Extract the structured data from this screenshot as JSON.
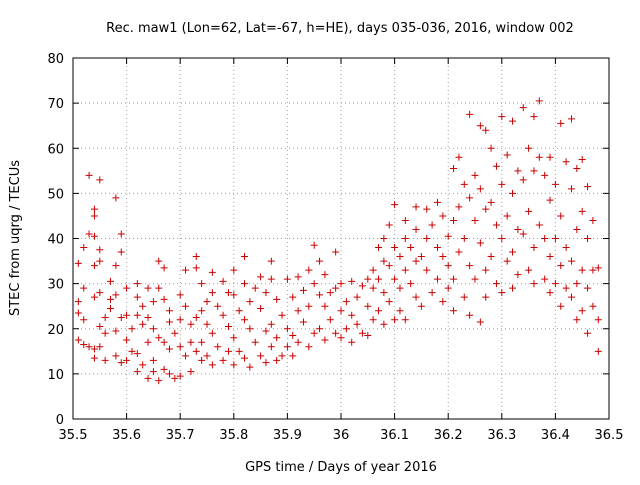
{
  "chart_data": {
    "type": "scatter",
    "title": "Rec. maw1 (Lon=62, Lat=-67, h=HE), days 035-036, 2016, window 002",
    "xlabel": "GPS time / Days of year 2016",
    "ylabel": "STEC from uqrg / TECUs",
    "xlim": [
      35.5,
      36.5
    ],
    "ylim": [
      0,
      80
    ],
    "xticks": [
      "35.5",
      "35.6",
      "35.7",
      "35.8",
      "35.9",
      "36",
      "36.1",
      "36.2",
      "36.3",
      "36.4",
      "36.5"
    ],
    "yticks": [
      "0",
      "10",
      "20",
      "30",
      "40",
      "50",
      "60",
      "70",
      "80"
    ],
    "grid": "dotted",
    "marker": "plus",
    "color": "#cc0000",
    "series": [
      {
        "points": [
          [
            35.51,
            34.5
          ],
          [
            35.51,
            26
          ],
          [
            35.51,
            23.5
          ],
          [
            35.51,
            17.5
          ],
          [
            35.52,
            38
          ],
          [
            35.52,
            29
          ],
          [
            35.52,
            22
          ],
          [
            35.52,
            16.5
          ],
          [
            35.53,
            54
          ],
          [
            35.53,
            41
          ],
          [
            35.53,
            16
          ],
          [
            35.54,
            46.5
          ],
          [
            35.54,
            45
          ],
          [
            35.54,
            40.5
          ],
          [
            35.54,
            34
          ],
          [
            35.54,
            27
          ],
          [
            35.54,
            15.5
          ],
          [
            35.54,
            13.5
          ],
          [
            35.55,
            53
          ],
          [
            35.55,
            37.5
          ],
          [
            35.55,
            35
          ],
          [
            35.55,
            28
          ],
          [
            35.55,
            20.5
          ],
          [
            35.55,
            16
          ],
          [
            35.56,
            22.5
          ],
          [
            35.56,
            19
          ],
          [
            35.56,
            13
          ],
          [
            35.57,
            30.5
          ],
          [
            35.57,
            26.5
          ],
          [
            35.57,
            24.5
          ],
          [
            35.58,
            49
          ],
          [
            35.58,
            34
          ],
          [
            35.58,
            27.5
          ],
          [
            35.58,
            19.5
          ],
          [
            35.58,
            14
          ],
          [
            35.59,
            41
          ],
          [
            35.59,
            37
          ],
          [
            35.59,
            22.5
          ],
          [
            35.59,
            12.5
          ],
          [
            35.6,
            29
          ],
          [
            35.6,
            23
          ],
          [
            35.6,
            17.5
          ],
          [
            35.6,
            13
          ],
          [
            35.61,
            20
          ],
          [
            35.61,
            15
          ],
          [
            35.62,
            30
          ],
          [
            35.62,
            27
          ],
          [
            35.62,
            23
          ],
          [
            35.62,
            14.5
          ],
          [
            35.62,
            10.5
          ],
          [
            35.63,
            25
          ],
          [
            35.63,
            21
          ],
          [
            35.63,
            12
          ],
          [
            35.64,
            29
          ],
          [
            35.64,
            22.5
          ],
          [
            35.64,
            17
          ],
          [
            35.64,
            9
          ],
          [
            35.65,
            26
          ],
          [
            35.65,
            20
          ],
          [
            35.65,
            13
          ],
          [
            35.65,
            10.5
          ],
          [
            35.66,
            35
          ],
          [
            35.66,
            29
          ],
          [
            35.66,
            18
          ],
          [
            35.66,
            8.5
          ],
          [
            35.67,
            33.5
          ],
          [
            35.67,
            26.5
          ],
          [
            35.67,
            17
          ],
          [
            35.67,
            11
          ],
          [
            35.68,
            24
          ],
          [
            35.68,
            21.5
          ],
          [
            35.68,
            15.5
          ],
          [
            35.68,
            10
          ],
          [
            35.69,
            19
          ],
          [
            35.69,
            9
          ],
          [
            35.7,
            27.5
          ],
          [
            35.7,
            22
          ],
          [
            35.7,
            16
          ],
          [
            35.7,
            9.5
          ],
          [
            35.71,
            33
          ],
          [
            35.71,
            25
          ],
          [
            35.71,
            14
          ],
          [
            35.72,
            21
          ],
          [
            35.72,
            17
          ],
          [
            35.72,
            10.5
          ],
          [
            35.73,
            36
          ],
          [
            35.73,
            33.5
          ],
          [
            35.73,
            22.5
          ],
          [
            35.73,
            15
          ],
          [
            35.74,
            30
          ],
          [
            35.74,
            24
          ],
          [
            35.74,
            17
          ],
          [
            35.74,
            13
          ],
          [
            35.75,
            26
          ],
          [
            35.75,
            21
          ],
          [
            35.75,
            14
          ],
          [
            35.76,
            32.5
          ],
          [
            35.76,
            28
          ],
          [
            35.76,
            19
          ],
          [
            35.76,
            12
          ],
          [
            35.77,
            25
          ],
          [
            35.77,
            16
          ],
          [
            35.78,
            30.5
          ],
          [
            35.78,
            23
          ],
          [
            35.78,
            13
          ],
          [
            35.79,
            28
          ],
          [
            35.79,
            20.5
          ],
          [
            35.79,
            15
          ],
          [
            35.8,
            33
          ],
          [
            35.8,
            27.5
          ],
          [
            35.8,
            18
          ],
          [
            35.8,
            12
          ],
          [
            35.81,
            24
          ],
          [
            35.81,
            15
          ],
          [
            35.82,
            36
          ],
          [
            35.82,
            30
          ],
          [
            35.82,
            22
          ],
          [
            35.82,
            13.5
          ],
          [
            35.83,
            26
          ],
          [
            35.83,
            20
          ],
          [
            35.83,
            11.5
          ],
          [
            35.84,
            29
          ],
          [
            35.84,
            17
          ],
          [
            35.85,
            31.5
          ],
          [
            35.85,
            24.5
          ],
          [
            35.85,
            14
          ],
          [
            35.86,
            28
          ],
          [
            35.86,
            19.5
          ],
          [
            35.86,
            12.5
          ],
          [
            35.87,
            35
          ],
          [
            35.87,
            31
          ],
          [
            35.87,
            21
          ],
          [
            35.87,
            16
          ],
          [
            35.88,
            26.5
          ],
          [
            35.88,
            18
          ],
          [
            35.88,
            13
          ],
          [
            35.89,
            23
          ],
          [
            35.89,
            14
          ],
          [
            35.9,
            31
          ],
          [
            35.9,
            20
          ],
          [
            35.9,
            16
          ],
          [
            35.91,
            27
          ],
          [
            35.91,
            18.5
          ],
          [
            35.91,
            14
          ],
          [
            35.92,
            31.5
          ],
          [
            35.92,
            24
          ],
          [
            35.92,
            17
          ],
          [
            35.93,
            28.5
          ],
          [
            35.93,
            21.5
          ],
          [
            35.94,
            33
          ],
          [
            35.94,
            25
          ],
          [
            35.94,
            16
          ],
          [
            35.95,
            38.5
          ],
          [
            35.95,
            30
          ],
          [
            35.95,
            19
          ],
          [
            35.96,
            35
          ],
          [
            35.96,
            27.5
          ],
          [
            35.96,
            20
          ],
          [
            35.97,
            32
          ],
          [
            35.97,
            25
          ],
          [
            35.97,
            17.5
          ],
          [
            35.98,
            28
          ],
          [
            35.98,
            22
          ],
          [
            35.99,
            37
          ],
          [
            35.99,
            29
          ],
          [
            35.99,
            19
          ],
          [
            36,
            30
          ],
          [
            36,
            24
          ],
          [
            36,
            18
          ],
          [
            36.01,
            26
          ],
          [
            36.01,
            20
          ],
          [
            36.02,
            30.5
          ],
          [
            36.02,
            23
          ],
          [
            36.02,
            17
          ],
          [
            36.03,
            27
          ],
          [
            36.03,
            21
          ],
          [
            36.04,
            29.5
          ],
          [
            36.04,
            19
          ],
          [
            36.05,
            31
          ],
          [
            36.05,
            25
          ],
          [
            36.05,
            18.5
          ],
          [
            36.06,
            33
          ],
          [
            36.06,
            29
          ],
          [
            36.06,
            22
          ],
          [
            36.07,
            38
          ],
          [
            36.07,
            31
          ],
          [
            36.07,
            24
          ],
          [
            36.08,
            40
          ],
          [
            36.08,
            35
          ],
          [
            36.08,
            28
          ],
          [
            36.08,
            21
          ],
          [
            36.09,
            43
          ],
          [
            36.09,
            34
          ],
          [
            36.09,
            26
          ],
          [
            36.1,
            47.5
          ],
          [
            36.1,
            38
          ],
          [
            36.1,
            31
          ],
          [
            36.1,
            22
          ],
          [
            36.11,
            36
          ],
          [
            36.11,
            29
          ],
          [
            36.11,
            24
          ],
          [
            36.12,
            44
          ],
          [
            36.12,
            40
          ],
          [
            36.12,
            33
          ],
          [
            36.12,
            22
          ],
          [
            36.13,
            38
          ],
          [
            36.13,
            30
          ],
          [
            36.14,
            47
          ],
          [
            36.14,
            42
          ],
          [
            36.14,
            35
          ],
          [
            36.14,
            27
          ],
          [
            36.15,
            36
          ],
          [
            36.15,
            25
          ],
          [
            36.16,
            46.5
          ],
          [
            36.16,
            40
          ],
          [
            36.16,
            33
          ],
          [
            36.17,
            43
          ],
          [
            36.17,
            28
          ],
          [
            36.18,
            48
          ],
          [
            36.18,
            38
          ],
          [
            36.18,
            31
          ],
          [
            36.19,
            45
          ],
          [
            36.19,
            36
          ],
          [
            36.19,
            26
          ],
          [
            36.2,
            40.5
          ],
          [
            36.2,
            34
          ],
          [
            36.2,
            29
          ],
          [
            36.21,
            55.5
          ],
          [
            36.21,
            44
          ],
          [
            36.21,
            31
          ],
          [
            36.21,
            24
          ],
          [
            36.22,
            58
          ],
          [
            36.22,
            47
          ],
          [
            36.22,
            37
          ],
          [
            36.23,
            52
          ],
          [
            36.23,
            40
          ],
          [
            36.23,
            27
          ],
          [
            36.24,
            67.5
          ],
          [
            36.24,
            49
          ],
          [
            36.24,
            34
          ],
          [
            36.24,
            23
          ],
          [
            36.25,
            54
          ],
          [
            36.25,
            44
          ],
          [
            36.25,
            31
          ],
          [
            36.26,
            65
          ],
          [
            36.26,
            51
          ],
          [
            36.26,
            39
          ],
          [
            36.26,
            21.5
          ],
          [
            36.27,
            64
          ],
          [
            36.27,
            46.5
          ],
          [
            36.27,
            33
          ],
          [
            36.27,
            27
          ],
          [
            36.28,
            60
          ],
          [
            36.28,
            48
          ],
          [
            36.28,
            36
          ],
          [
            36.29,
            56
          ],
          [
            36.29,
            43
          ],
          [
            36.29,
            30
          ],
          [
            36.3,
            67
          ],
          [
            36.3,
            52
          ],
          [
            36.3,
            40
          ],
          [
            36.3,
            28
          ],
          [
            36.31,
            58.5
          ],
          [
            36.31,
            45
          ],
          [
            36.31,
            35
          ],
          [
            36.32,
            66
          ],
          [
            36.32,
            50
          ],
          [
            36.32,
            37
          ],
          [
            36.32,
            29
          ],
          [
            36.33,
            55
          ],
          [
            36.33,
            42
          ],
          [
            36.33,
            32
          ],
          [
            36.34,
            69
          ],
          [
            36.34,
            53
          ],
          [
            36.34,
            41
          ],
          [
            36.35,
            60
          ],
          [
            36.35,
            46
          ],
          [
            36.35,
            33
          ],
          [
            36.36,
            67
          ],
          [
            36.36,
            55
          ],
          [
            36.36,
            38
          ],
          [
            36.36,
            30
          ],
          [
            36.37,
            70.5
          ],
          [
            36.37,
            58
          ],
          [
            36.37,
            43
          ],
          [
            36.38,
            54
          ],
          [
            36.38,
            40
          ],
          [
            36.38,
            31
          ],
          [
            36.39,
            58
          ],
          [
            36.39,
            48.5
          ],
          [
            36.39,
            36
          ],
          [
            36.39,
            28
          ],
          [
            36.4,
            52
          ],
          [
            36.4,
            40
          ],
          [
            36.4,
            30
          ],
          [
            36.41,
            65.5
          ],
          [
            36.41,
            45
          ],
          [
            36.41,
            34
          ],
          [
            36.41,
            25
          ],
          [
            36.42,
            57
          ],
          [
            36.42,
            38
          ],
          [
            36.42,
            29
          ],
          [
            36.43,
            66.5
          ],
          [
            36.43,
            51
          ],
          [
            36.43,
            35
          ],
          [
            36.43,
            27
          ],
          [
            36.44,
            55.5
          ],
          [
            36.44,
            42
          ],
          [
            36.44,
            30
          ],
          [
            36.44,
            22
          ],
          [
            36.45,
            57.5
          ],
          [
            36.45,
            46
          ],
          [
            36.45,
            33
          ],
          [
            36.45,
            24
          ],
          [
            36.46,
            51.5
          ],
          [
            36.46,
            40
          ],
          [
            36.46,
            29
          ],
          [
            36.46,
            19
          ],
          [
            36.47,
            44
          ],
          [
            36.47,
            33
          ],
          [
            36.47,
            25
          ],
          [
            36.48,
            33.5
          ],
          [
            36.48,
            22
          ],
          [
            36.48,
            15
          ]
        ]
      }
    ]
  }
}
